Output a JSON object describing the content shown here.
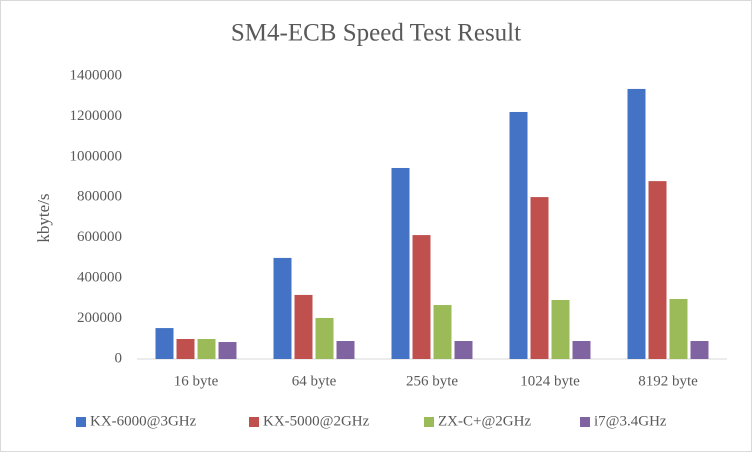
{
  "chart_data": {
    "type": "bar",
    "title": "SM4-ECB Speed Test Result",
    "y_label": "kbyte/s",
    "categories": [
      "16 byte",
      "64 byte",
      "256 byte",
      "1024 byte",
      "8192 byte"
    ],
    "series": [
      {
        "name": "KX-6000@3GHz",
        "color": "#4472c4",
        "values": [
          153000,
          500000,
          945000,
          1222000,
          1336000
        ]
      },
      {
        "name": "KX-5000@2GHz",
        "color": "#c0504d",
        "values": [
          99000,
          317000,
          613000,
          801000,
          880000
        ]
      },
      {
        "name": "ZX-C+@2GHz",
        "color": "#9bbb59",
        "values": [
          99000,
          203000,
          267000,
          292000,
          297000
        ]
      },
      {
        "name": "i7@3.4GHz",
        "color": "#8064a2",
        "values": [
          84000,
          89000,
          89000,
          89000,
          89000
        ]
      }
    ],
    "ylim": [
      0,
      1400000
    ],
    "yticks": [
      0,
      200000,
      400000,
      600000,
      800000,
      1000000,
      1200000,
      1400000
    ],
    "grid": false,
    "legend": "bottom"
  }
}
